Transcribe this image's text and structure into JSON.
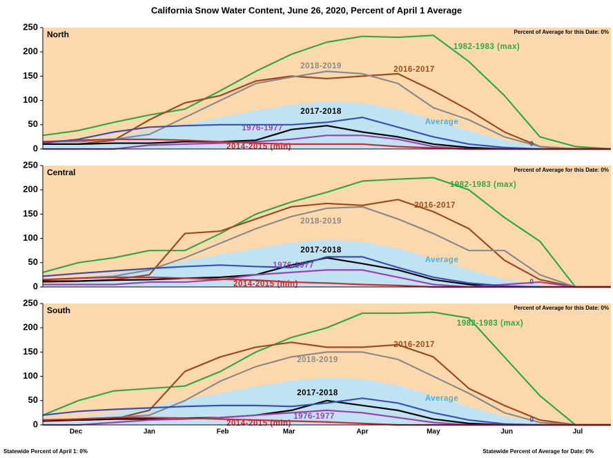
{
  "title": "California Snow Water Content, June 26, 2020, Percent of April 1 Average",
  "footer_left": "Statewide Percent of April 1: 0%",
  "footer_right": "Statewide Percent of Average for Date: 0%",
  "chart_data": [
    {
      "type": "line",
      "title": "North",
      "note": "Percent of Average for this Date: 0%",
      "x": [
        0,
        15,
        30,
        45,
        60,
        75,
        90,
        105,
        120,
        135,
        150,
        165,
        180,
        195,
        210,
        225,
        240
      ],
      "xlim": [
        0,
        240
      ],
      "ylim": [
        0,
        250
      ],
      "yticks": [
        0,
        50,
        100,
        150,
        200,
        250
      ],
      "series": [
        {
          "name": "Average",
          "style": "area",
          "color": "#bfe3f2",
          "label_color": "#4fb0e0",
          "values": [
            8,
            15,
            25,
            38,
            52,
            66,
            80,
            92,
            98,
            95,
            82,
            60,
            38,
            18,
            6,
            1,
            0
          ]
        },
        {
          "name": "1982-1983 (max)",
          "color": "#2ea84a",
          "values": [
            28,
            38,
            55,
            70,
            82,
            120,
            160,
            195,
            220,
            232,
            230,
            234,
            180,
            110,
            25,
            5,
            0
          ]
        },
        {
          "name": "2016-2017",
          "color": "#9b4a1e",
          "values": [
            10,
            10,
            18,
            60,
            95,
            110,
            140,
            150,
            145,
            150,
            155,
            120,
            80,
            35,
            5,
            0,
            0
          ]
        },
        {
          "name": "2018-2019",
          "color": "#8a8a8a",
          "values": [
            15,
            15,
            20,
            30,
            65,
            100,
            135,
            148,
            160,
            155,
            135,
            85,
            60,
            25,
            5,
            0,
            0
          ]
        },
        {
          "name": "2017-2018",
          "color": "#000000",
          "values": [
            10,
            10,
            12,
            12,
            15,
            15,
            18,
            40,
            48,
            35,
            25,
            10,
            3,
            0,
            0,
            0,
            0
          ]
        },
        {
          "name": "1976-1977",
          "color": "#a03fb0",
          "values": [
            0,
            0,
            0,
            8,
            10,
            12,
            15,
            20,
            28,
            28,
            20,
            5,
            0,
            0,
            0,
            0,
            0
          ]
        },
        {
          "name": "2014-2015 (min)",
          "color": "#d6262b",
          "values": [
            15,
            18,
            20,
            20,
            18,
            15,
            12,
            10,
            10,
            10,
            5,
            2,
            0,
            0,
            0,
            0,
            0
          ]
        },
        {
          "color": "#3a4fb5",
          "values": [
            12,
            20,
            35,
            45,
            48,
            50,
            50,
            50,
            55,
            65,
            45,
            25,
            10,
            3,
            0,
            null,
            null
          ]
        }
      ]
    },
    {
      "type": "line",
      "title": "Central",
      "note": "Percent of Average for this Date: 0%",
      "x": [
        0,
        15,
        30,
        45,
        60,
        75,
        90,
        105,
        120,
        135,
        150,
        165,
        180,
        195,
        210,
        225,
        240
      ],
      "xlim": [
        0,
        240
      ],
      "ylim": [
        0,
        250
      ],
      "yticks": [
        0,
        50,
        100,
        150,
        200,
        250
      ],
      "series": [
        {
          "name": "Average",
          "style": "area",
          "color": "#bfe3f2",
          "label_color": "#4fb0e0",
          "values": [
            10,
            18,
            28,
            40,
            54,
            68,
            80,
            92,
            98,
            93,
            80,
            58,
            36,
            16,
            5,
            1,
            0
          ]
        },
        {
          "name": "1982-1983 (max)",
          "color": "#2ea84a",
          "values": [
            30,
            50,
            60,
            75,
            75,
            110,
            150,
            175,
            195,
            218,
            222,
            225,
            200,
            143,
            94,
            0,
            0
          ]
        },
        {
          "name": "2016-2017",
          "color": "#9b4a1e",
          "values": [
            10,
            12,
            15,
            25,
            110,
            115,
            140,
            165,
            172,
            168,
            180,
            155,
            120,
            55,
            15,
            0,
            0
          ]
        },
        {
          "name": "2018-2019",
          "color": "#8a8a8a",
          "values": [
            15,
            18,
            22,
            35,
            60,
            90,
            120,
            145,
            162,
            165,
            140,
            110,
            75,
            75,
            25,
            0,
            0
          ]
        },
        {
          "name": "2017-2018",
          "color": "#000000",
          "values": [
            12,
            12,
            14,
            15,
            18,
            20,
            25,
            45,
            60,
            48,
            35,
            15,
            5,
            0,
            0,
            0,
            0
          ]
        },
        {
          "name": "1976-1977",
          "color": "#a03fb0",
          "values": [
            5,
            5,
            5,
            10,
            10,
            15,
            25,
            30,
            35,
            35,
            20,
            5,
            0,
            5,
            10,
            0,
            0
          ]
        },
        {
          "name": "2014-2015 (min)",
          "color": "#d6262b",
          "values": [
            15,
            18,
            20,
            20,
            18,
            16,
            14,
            10,
            8,
            5,
            3,
            0,
            0,
            0,
            0,
            0,
            0
          ]
        },
        {
          "color": "#3a4fb5",
          "values": [
            22,
            28,
            33,
            38,
            42,
            45,
            42,
            40,
            62,
            62,
            40,
            20,
            8,
            2,
            0,
            null,
            null
          ]
        }
      ]
    },
    {
      "type": "line",
      "title": "South",
      "note": "Percent of Average for this Date: 0%",
      "x": [
        0,
        15,
        30,
        45,
        60,
        75,
        90,
        105,
        120,
        135,
        150,
        165,
        180,
        195,
        210,
        225,
        240
      ],
      "xlim": [
        0,
        240
      ],
      "ylim": [
        0,
        250
      ],
      "yticks": [
        0,
        50,
        100,
        150,
        200,
        250
      ],
      "xticks": [
        {
          "value": 14,
          "label": "Dec"
        },
        {
          "value": 45,
          "label": "Jan"
        },
        {
          "value": 76,
          "label": "Feb"
        },
        {
          "value": 104,
          "label": "Mar"
        },
        {
          "value": 135,
          "label": "Apr"
        },
        {
          "value": 165,
          "label": "May"
        },
        {
          "value": 196,
          "label": "Jun"
        },
        {
          "value": 226,
          "label": "Jul"
        }
      ],
      "series": [
        {
          "name": "Average",
          "style": "area",
          "color": "#bfe3f2",
          "label_color": "#4fb0e0",
          "values": [
            8,
            15,
            25,
            38,
            52,
            66,
            80,
            92,
            98,
            95,
            82,
            60,
            38,
            18,
            6,
            1,
            0
          ]
        },
        {
          "name": "1982-1983 (max)",
          "color": "#2ea84a",
          "values": [
            20,
            50,
            70,
            75,
            80,
            110,
            150,
            180,
            200,
            230,
            230,
            232,
            220,
            140,
            60,
            0,
            0
          ]
        },
        {
          "name": "2016-2017",
          "color": "#9b4a1e",
          "values": [
            10,
            10,
            12,
            30,
            110,
            140,
            160,
            170,
            160,
            160,
            165,
            140,
            75,
            40,
            10,
            0,
            0
          ]
        },
        {
          "name": "2018-2019",
          "color": "#8a8a8a",
          "values": [
            10,
            12,
            15,
            20,
            50,
            90,
            120,
            140,
            150,
            150,
            135,
            100,
            65,
            25,
            5,
            0,
            0
          ]
        },
        {
          "name": "2017-2018",
          "color": "#000000",
          "values": [
            8,
            10,
            12,
            12,
            14,
            15,
            20,
            30,
            50,
            40,
            30,
            12,
            3,
            0,
            0,
            0,
            0
          ]
        },
        {
          "name": "1976-1977",
          "color": "#a03fb0",
          "values": [
            0,
            0,
            5,
            10,
            12,
            15,
            20,
            25,
            30,
            25,
            15,
            5,
            0,
            0,
            0,
            0,
            0
          ]
        },
        {
          "name": "2014-2015 (min)",
          "color": "#d6262b",
          "values": [
            10,
            12,
            15,
            15,
            14,
            12,
            10,
            8,
            6,
            3,
            0,
            0,
            0,
            0,
            0,
            0,
            0
          ]
        },
        {
          "color": "#3a4fb5",
          "values": [
            20,
            28,
            32,
            35,
            38,
            40,
            40,
            38,
            45,
            55,
            45,
            25,
            10,
            2,
            0,
            null,
            null
          ]
        }
      ]
    }
  ]
}
